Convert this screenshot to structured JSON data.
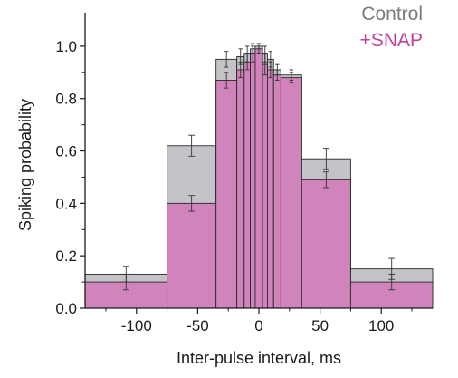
{
  "chart_data": {
    "type": "bar",
    "title": "",
    "xlabel": "Inter-pulse interval, ms",
    "ylabel": "Spiking probability",
    "xlim": [
      -142,
      142
    ],
    "ylim": [
      0,
      1.1
    ],
    "x_ticks": [
      -100,
      -50,
      0,
      50,
      100
    ],
    "y_ticks": [
      0.0,
      0.2,
      0.4,
      0.6,
      0.8,
      1.0
    ],
    "x_tick_labels": [
      "-100",
      "-50",
      "0",
      "50",
      "100"
    ],
    "y_tick_labels": [
      "0.0",
      "0.2",
      "0.4",
      "0.6",
      "0.8",
      "1.0"
    ],
    "legend_position": "top-right",
    "series": [
      {
        "name": "Control",
        "color": "#c4c4c8",
        "bins": [
          {
            "x0": -142,
            "x1": -75,
            "value": 0.13,
            "err": 0.03
          },
          {
            "x0": -75,
            "x1": -35,
            "value": 0.62,
            "err": 0.04
          },
          {
            "x0": -35,
            "x1": -18,
            "value": 0.95,
            "err": 0.03
          },
          {
            "x0": -18,
            "x1": -12,
            "value": 0.96,
            "err": 0.03
          },
          {
            "x0": -12,
            "x1": -7,
            "value": 0.97,
            "err": 0.03
          },
          {
            "x0": -7,
            "x1": -3,
            "value": 0.99,
            "err": 0.02
          },
          {
            "x0": -3,
            "x1": 3,
            "value": 1.0,
            "err": 0.01
          },
          {
            "x0": 3,
            "x1": 7,
            "value": 0.97,
            "err": 0.03
          },
          {
            "x0": 7,
            "x1": 12,
            "value": 0.95,
            "err": 0.03
          },
          {
            "x0": 12,
            "x1": 18,
            "value": 0.91,
            "err": 0.02
          },
          {
            "x0": 18,
            "x1": 35,
            "value": 0.89,
            "err": 0.02
          },
          {
            "x0": 35,
            "x1": 75,
            "value": 0.57,
            "err": 0.04
          },
          {
            "x0": 75,
            "x1": 142,
            "value": 0.15,
            "err": 0.04
          }
        ]
      },
      {
        "name": "+SNAP",
        "color": "#d183bc",
        "bins": [
          {
            "x0": -142,
            "x1": -75,
            "value": 0.1,
            "err": 0.03
          },
          {
            "x0": -75,
            "x1": -35,
            "value": 0.4,
            "err": 0.03
          },
          {
            "x0": -35,
            "x1": -18,
            "value": 0.87,
            "err": 0.03
          },
          {
            "x0": -18,
            "x1": -12,
            "value": 0.91,
            "err": 0.03
          },
          {
            "x0": -12,
            "x1": -7,
            "value": 0.94,
            "err": 0.03
          },
          {
            "x0": -7,
            "x1": -3,
            "value": 0.97,
            "err": 0.03
          },
          {
            "x0": -3,
            "x1": 3,
            "value": 0.99,
            "err": 0.02
          },
          {
            "x0": 3,
            "x1": 7,
            "value": 0.93,
            "err": 0.04
          },
          {
            "x0": 7,
            "x1": 12,
            "value": 0.91,
            "err": 0.03
          },
          {
            "x0": 12,
            "x1": 18,
            "value": 0.89,
            "err": 0.02
          },
          {
            "x0": 18,
            "x1": 35,
            "value": 0.88,
            "err": 0.02
          },
          {
            "x0": 35,
            "x1": 75,
            "value": 0.49,
            "err": 0.03
          },
          {
            "x0": 75,
            "x1": 142,
            "value": 0.1,
            "err": 0.03
          }
        ]
      }
    ],
    "legend": [
      {
        "label": "Control",
        "color": "#7a7a7e"
      },
      {
        "label": "+SNAP",
        "color": "#c0409a"
      }
    ]
  }
}
